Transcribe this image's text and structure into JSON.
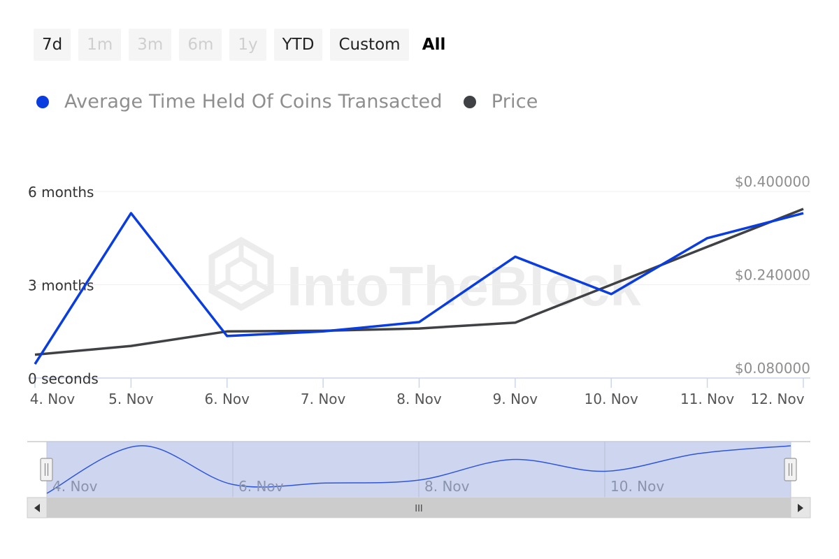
{
  "range_selector": {
    "buttons": [
      {
        "label": "7d",
        "state": "enabled"
      },
      {
        "label": "1m",
        "state": "disabled"
      },
      {
        "label": "3m",
        "state": "disabled"
      },
      {
        "label": "6m",
        "state": "disabled"
      },
      {
        "label": "1y",
        "state": "disabled"
      },
      {
        "label": "YTD",
        "state": "enabled"
      },
      {
        "label": "Custom",
        "state": "enabled"
      },
      {
        "label": "All",
        "state": "active"
      }
    ]
  },
  "legend": {
    "items": [
      {
        "label": "Average Time Held Of Coins Transacted",
        "color": "#0a3de0"
      },
      {
        "label": "Price",
        "color": "#3f4144"
      }
    ]
  },
  "watermark": "IntoTheBlock",
  "navigator": {
    "tick_labels": [
      "4. Nov",
      "6. Nov",
      "8. Nov",
      "10. Nov"
    ],
    "grip_glyph": "III",
    "handle_glyph": "||"
  },
  "chart_data": {
    "type": "line",
    "categories": [
      "4. Nov",
      "5. Nov",
      "6. Nov",
      "7. Nov",
      "8. Nov",
      "9. Nov",
      "10. Nov",
      "11. Nov",
      "12. Nov"
    ],
    "series": [
      {
        "name": "Average Time Held Of Coins Transacted",
        "axis": "left",
        "unit": "months",
        "color": "#0a3de0",
        "values": [
          0.45,
          5.3,
          1.35,
          1.5,
          1.8,
          3.9,
          2.7,
          4.5,
          5.3
        ]
      },
      {
        "name": "Price",
        "axis": "right",
        "unit": "USD",
        "color": "#3f4144",
        "values": [
          0.12,
          0.135,
          0.16,
          0.161,
          0.165,
          0.175,
          0.24,
          0.305,
          0.37
        ]
      }
    ],
    "y_left": {
      "tick_labels": [
        "0 seconds",
        "3 months",
        "6 months"
      ],
      "tick_values": [
        0,
        3,
        6
      ],
      "range": [
        0,
        6
      ]
    },
    "y_right": {
      "tick_labels": [
        "$0.080000",
        "$0.240000",
        "$0.400000"
      ],
      "tick_values": [
        0.08,
        0.24,
        0.4
      ],
      "range": [
        0.08,
        0.4
      ]
    },
    "grid": true,
    "legend_position": "top-left"
  }
}
